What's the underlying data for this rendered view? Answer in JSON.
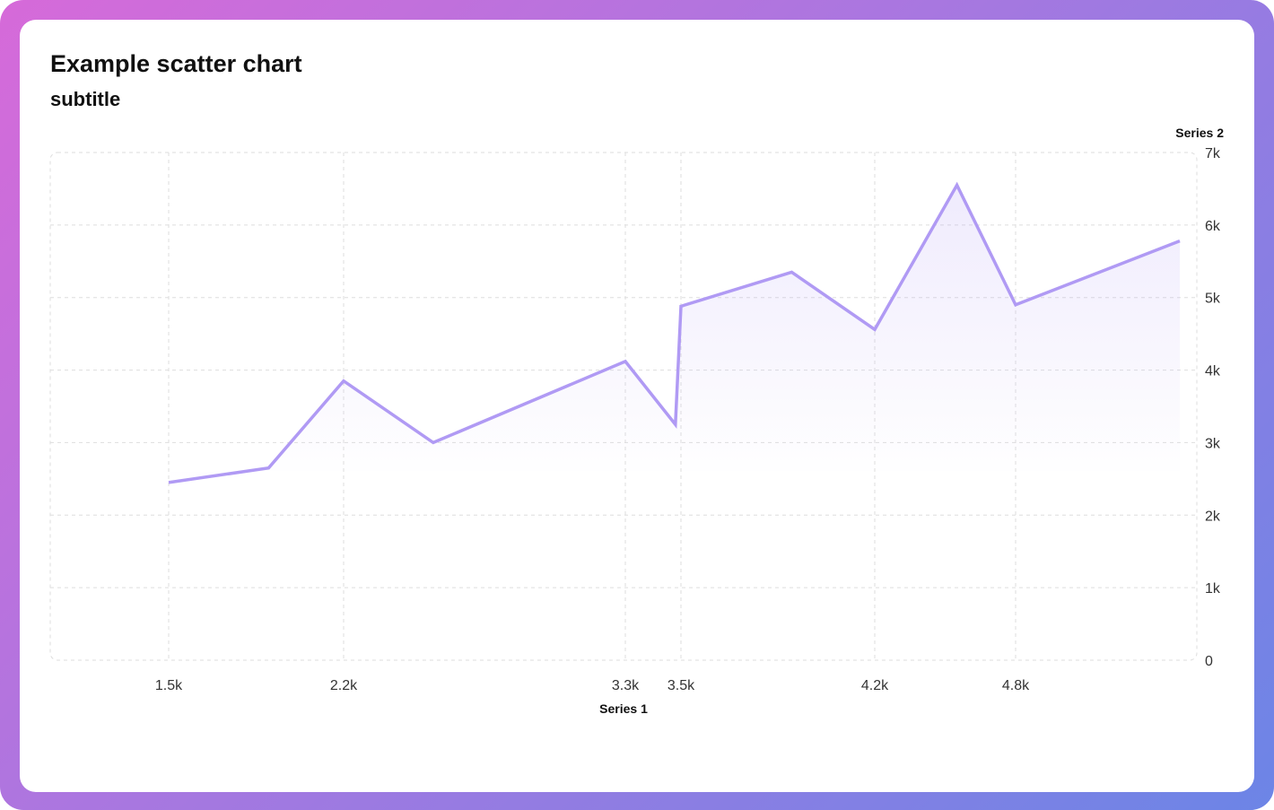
{
  "colors": {
    "line": "#b09af4",
    "grid": "#dedede"
  },
  "chart_data": {
    "type": "line",
    "title": "Example scatter chart",
    "subtitle": "subtitle",
    "xlabel": "Series 1",
    "ylabel": "Series 2",
    "x_ticks": [
      {
        "value": 1500,
        "label": "1.5k"
      },
      {
        "value": 2200,
        "label": "2.2k"
      },
      {
        "value": 3300,
        "label": "3.3k"
      },
      {
        "value": 3500,
        "label": "3.5k"
      },
      {
        "value": 4200,
        "label": "4.2k"
      },
      {
        "value": 4800,
        "label": "4.8k"
      }
    ],
    "y_ticks": [
      {
        "value": 0,
        "label": "0"
      },
      {
        "value": 1000,
        "label": "1k"
      },
      {
        "value": 2000,
        "label": "2k"
      },
      {
        "value": 3000,
        "label": "3k"
      },
      {
        "value": 4000,
        "label": "4k"
      },
      {
        "value": 5000,
        "label": "5k"
      },
      {
        "value": 6000,
        "label": "6k"
      },
      {
        "value": 7000,
        "label": "7k"
      }
    ],
    "ylim": [
      0,
      7000
    ],
    "grid": true,
    "series": [
      {
        "points": [
          {
            "x": 1500,
            "y": 2450
          },
          {
            "x": 1900,
            "y": 2650
          },
          {
            "x": 2200,
            "y": 3850
          },
          {
            "x": 2550,
            "y": 3000
          },
          {
            "x": 3300,
            "y": 4120
          },
          {
            "x": 3480,
            "y": 3250
          },
          {
            "x": 3500,
            "y": 4880
          },
          {
            "x": 3900,
            "y": 5350
          },
          {
            "x": 4200,
            "y": 4560
          },
          {
            "x": 4550,
            "y": 6550
          },
          {
            "x": 4800,
            "y": 4900
          },
          {
            "x": 5450,
            "y": 5780
          }
        ]
      }
    ]
  }
}
